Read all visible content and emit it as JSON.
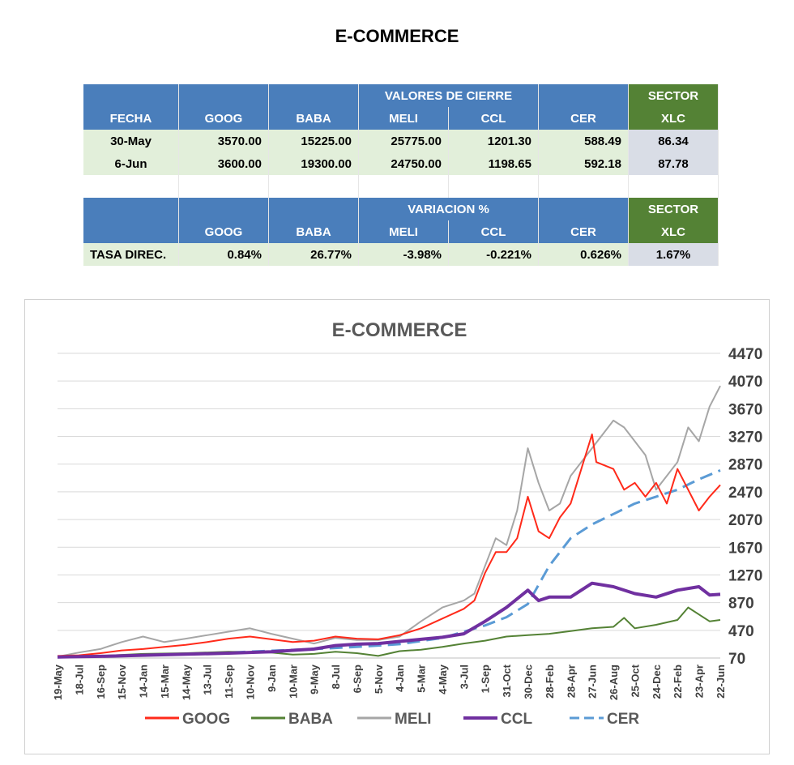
{
  "page_title": "E-COMMERCE",
  "table": {
    "section1": {
      "header": "VALORES DE CIERRE",
      "sector_header": "SECTOR",
      "columns": [
        "FECHA",
        "GOOG",
        "BABA",
        "MELI",
        "CCL",
        "CER"
      ],
      "sector_column": "XLC",
      "rows": [
        {
          "fecha": "30-May",
          "goog": "3570.00",
          "baba": "15225.00",
          "meli": "25775.00",
          "ccl": "1201.30",
          "cer": "588.49",
          "xlc": "86.34"
        },
        {
          "fecha": "6-Jun",
          "goog": "3600.00",
          "baba": "19300.00",
          "meli": "24750.00",
          "ccl": "1198.65",
          "cer": "592.18",
          "xlc": "87.78"
        }
      ]
    },
    "section2": {
      "header": "VARIACION %",
      "sector_header": "SECTOR",
      "columns": [
        "GOOG",
        "BABA",
        "MELI",
        "CCL",
        "CER"
      ],
      "sector_column": "XLC",
      "row": {
        "label": "TASA DIREC.",
        "goog": "0.84%",
        "baba": "26.77%",
        "meli": "-3.98%",
        "ccl": "-0.221%",
        "cer": "0.626%",
        "xlc": "1.67%"
      }
    }
  },
  "chart_data": {
    "type": "line",
    "title": "E-COMMERCE",
    "y_ticks": [
      70,
      470,
      870,
      1270,
      1670,
      2070,
      2470,
      2870,
      3270,
      3670,
      4070,
      4470
    ],
    "ylim": [
      70,
      4470
    ],
    "grid": true,
    "legend_placement": "bottom",
    "x_labels": [
      "19-May",
      "18-Jul",
      "16-Sep",
      "15-Nov",
      "14-Jan",
      "15-Mar",
      "14-May",
      "13-Jul",
      "11-Sep",
      "10-Nov",
      "9-Jan",
      "10-Mar",
      "9-May",
      "8-Jul",
      "6-Sep",
      "5-Nov",
      "4-Jan",
      "5-Mar",
      "4-May",
      "3-Jul",
      "1-Sep",
      "31-Oct",
      "30-Dec",
      "28-Feb",
      "28-Apr",
      "27-Jun",
      "26-Aug",
      "25-Oct",
      "24-Dec",
      "22-Feb",
      "23-Apr",
      "22-Jun"
    ],
    "series": [
      {
        "name": "GOOG",
        "color": "#ff2a1a",
        "dash": false,
        "width": 2,
        "points": [
          [
            0,
            100
          ],
          [
            1,
            110
          ],
          [
            2,
            140
          ],
          [
            3,
            180
          ],
          [
            4,
            200
          ],
          [
            5,
            230
          ],
          [
            6,
            260
          ],
          [
            7,
            300
          ],
          [
            8,
            350
          ],
          [
            9,
            380
          ],
          [
            10,
            340
          ],
          [
            11,
            300
          ],
          [
            12,
            320
          ],
          [
            13,
            380
          ],
          [
            14,
            350
          ],
          [
            15,
            340
          ],
          [
            16,
            400
          ],
          [
            17,
            500
          ],
          [
            18,
            640
          ],
          [
            19,
            780
          ],
          [
            19.5,
            900
          ],
          [
            20,
            1300
          ],
          [
            20.5,
            1600
          ],
          [
            21,
            1600
          ],
          [
            21.5,
            1800
          ],
          [
            22,
            2400
          ],
          [
            22.5,
            1900
          ],
          [
            23,
            1800
          ],
          [
            23.5,
            2100
          ],
          [
            24,
            2300
          ],
          [
            24.5,
            2800
          ],
          [
            25,
            3300
          ],
          [
            25.2,
            2900
          ],
          [
            26,
            2800
          ],
          [
            26.5,
            2500
          ],
          [
            27,
            2600
          ],
          [
            27.5,
            2400
          ],
          [
            28,
            2600
          ],
          [
            28.5,
            2300
          ],
          [
            29,
            2800
          ],
          [
            29.5,
            2500
          ],
          [
            30,
            2200
          ],
          [
            30.5,
            2400
          ],
          [
            31,
            2570
          ]
        ]
      },
      {
        "name": "BABA",
        "color": "#548235",
        "dash": false,
        "width": 2,
        "points": [
          [
            0,
            90
          ],
          [
            2,
            100
          ],
          [
            4,
            130
          ],
          [
            6,
            140
          ],
          [
            8,
            160
          ],
          [
            10,
            150
          ],
          [
            11,
            120
          ],
          [
            12,
            130
          ],
          [
            13,
            160
          ],
          [
            14,
            140
          ],
          [
            15,
            100
          ],
          [
            16,
            170
          ],
          [
            17,
            190
          ],
          [
            18,
            230
          ],
          [
            19,
            280
          ],
          [
            20,
            320
          ],
          [
            21,
            380
          ],
          [
            22,
            400
          ],
          [
            23,
            420
          ],
          [
            24,
            460
          ],
          [
            25,
            500
          ],
          [
            26,
            520
          ],
          [
            26.5,
            650
          ],
          [
            27,
            500
          ],
          [
            28,
            550
          ],
          [
            29,
            620
          ],
          [
            29.5,
            800
          ],
          [
            30,
            700
          ],
          [
            30.5,
            600
          ],
          [
            31,
            620
          ]
        ]
      },
      {
        "name": "MELI",
        "color": "#a6a6a6",
        "dash": false,
        "width": 2,
        "points": [
          [
            0,
            90
          ],
          [
            1,
            150
          ],
          [
            2,
            200
          ],
          [
            3,
            300
          ],
          [
            4,
            380
          ],
          [
            5,
            300
          ],
          [
            6,
            350
          ],
          [
            7,
            400
          ],
          [
            8,
            450
          ],
          [
            9,
            500
          ],
          [
            10,
            420
          ],
          [
            11,
            350
          ],
          [
            12,
            280
          ],
          [
            13,
            360
          ],
          [
            14,
            330
          ],
          [
            15,
            330
          ],
          [
            16,
            380
          ],
          [
            17,
            600
          ],
          [
            18,
            800
          ],
          [
            19,
            900
          ],
          [
            19.5,
            1000
          ],
          [
            20,
            1400
          ],
          [
            20.5,
            1800
          ],
          [
            21,
            1700
          ],
          [
            21.5,
            2200
          ],
          [
            22,
            3100
          ],
          [
            22.5,
            2600
          ],
          [
            23,
            2200
          ],
          [
            23.5,
            2300
          ],
          [
            24,
            2700
          ],
          [
            24.5,
            2900
          ],
          [
            25,
            3100
          ],
          [
            25.5,
            3300
          ],
          [
            26,
            3500
          ],
          [
            26.5,
            3400
          ],
          [
            27,
            3200
          ],
          [
            27.5,
            3000
          ],
          [
            28,
            2500
          ],
          [
            28.5,
            2700
          ],
          [
            29,
            2900
          ],
          [
            29.5,
            3400
          ],
          [
            30,
            3200
          ],
          [
            30.5,
            3700
          ],
          [
            31,
            4000
          ]
        ]
      },
      {
        "name": "CCL",
        "color": "#7030a0",
        "dash": false,
        "width": 4,
        "points": [
          [
            0,
            85
          ],
          [
            2,
            95
          ],
          [
            4,
            110
          ],
          [
            6,
            125
          ],
          [
            8,
            140
          ],
          [
            10,
            160
          ],
          [
            12,
            200
          ],
          [
            13,
            250
          ],
          [
            14,
            270
          ],
          [
            15,
            280
          ],
          [
            16,
            310
          ],
          [
            17,
            340
          ],
          [
            18,
            370
          ],
          [
            19,
            420
          ],
          [
            20,
            600
          ],
          [
            21,
            800
          ],
          [
            22,
            1050
          ],
          [
            22.5,
            900
          ],
          [
            23,
            950
          ],
          [
            24,
            950
          ],
          [
            25,
            1150
          ],
          [
            26,
            1100
          ],
          [
            27,
            1000
          ],
          [
            28,
            950
          ],
          [
            29,
            1050
          ],
          [
            30,
            1100
          ],
          [
            30.5,
            980
          ],
          [
            31,
            990
          ]
        ]
      },
      {
        "name": "CER",
        "color": "#5b9bd5",
        "dash": true,
        "width": 3,
        "points": [
          [
            0,
            80
          ],
          [
            2,
            95
          ],
          [
            4,
            110
          ],
          [
            6,
            130
          ],
          [
            8,
            150
          ],
          [
            10,
            175
          ],
          [
            12,
            200
          ],
          [
            14,
            230
          ],
          [
            16,
            270
          ],
          [
            18,
            360
          ],
          [
            19,
            450
          ],
          [
            20,
            540
          ],
          [
            21,
            660
          ],
          [
            22,
            850
          ],
          [
            23,
            1400
          ],
          [
            24,
            1800
          ],
          [
            25,
            2000
          ],
          [
            26,
            2150
          ],
          [
            27,
            2300
          ],
          [
            28,
            2400
          ],
          [
            29,
            2500
          ],
          [
            30,
            2650
          ],
          [
            31,
            2780
          ]
        ]
      }
    ]
  }
}
